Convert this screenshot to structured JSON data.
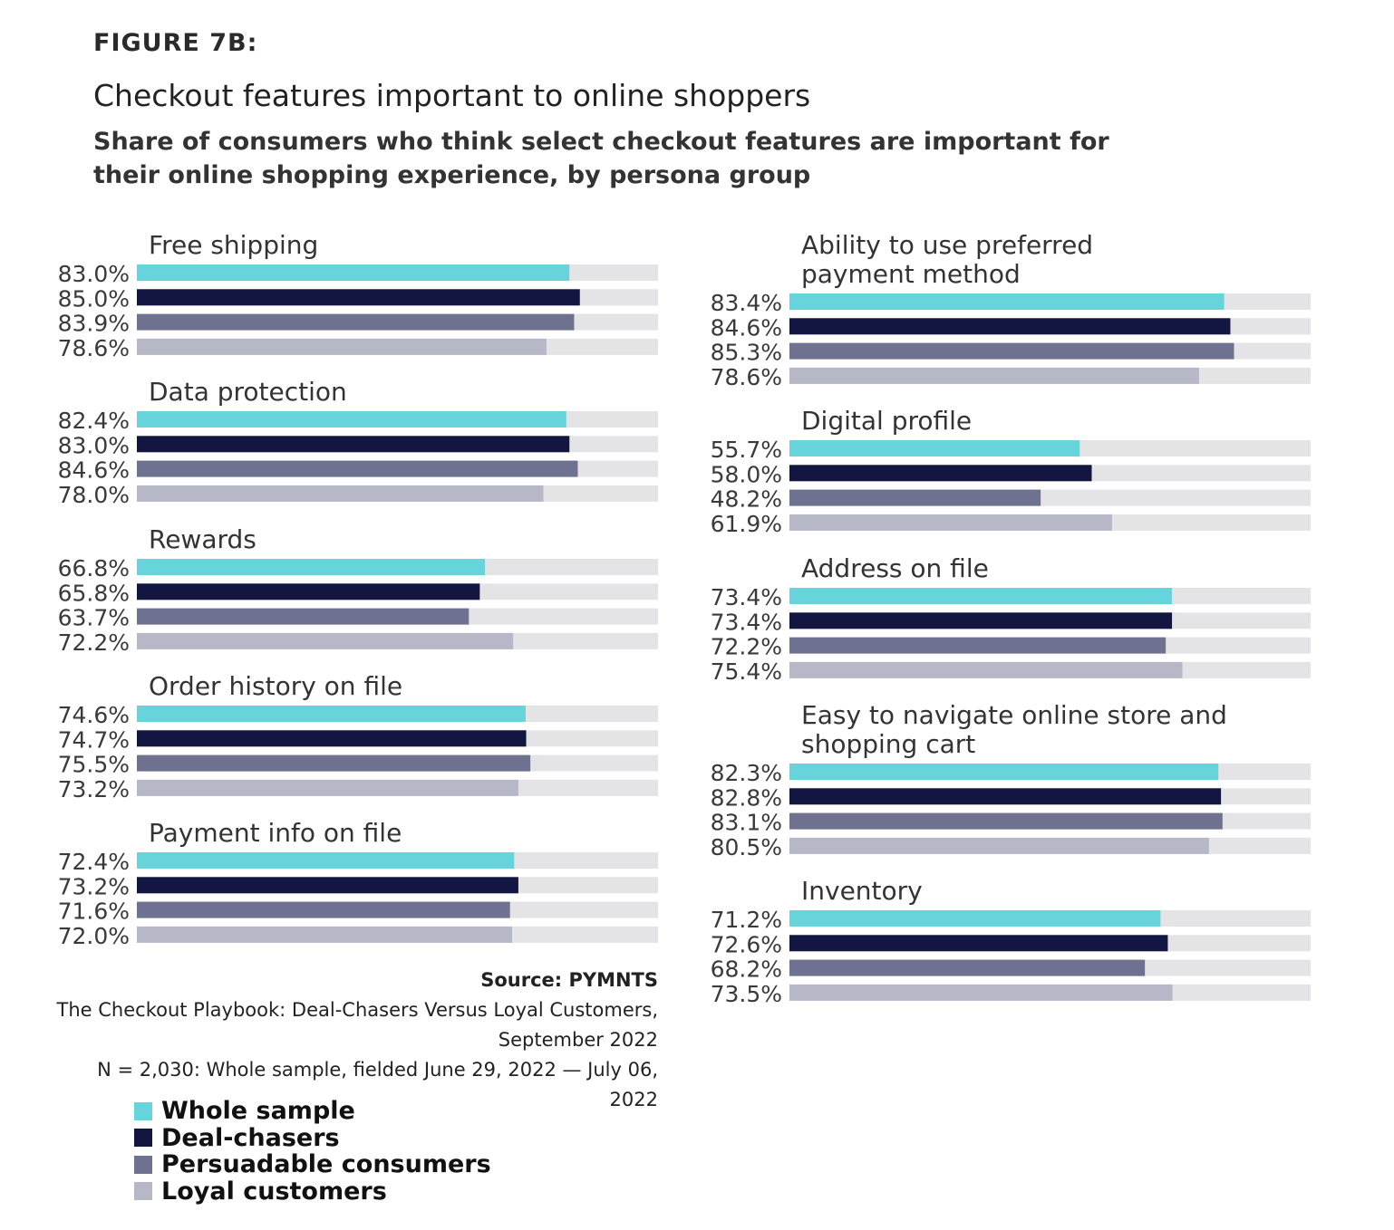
{
  "figure_label": "FIGURE 7B:",
  "title": "Checkout features important to online shoppers",
  "subtitle": "Share of consumers who think select checkout features are important for their online shopping experience, by persona group",
  "source": {
    "heading": "Source: PYMNTS",
    "line1": "The Checkout Playbook: Deal-Chasers Versus Loyal Customers, September 2022",
    "line2": "N = 2,030: Whole sample, fielded June 29, 2022 — July 06, 2022"
  },
  "colors": {
    "track": "#e4e4e6",
    "series": [
      "#67d4dc",
      "#131640",
      "#6e7290",
      "#b6b8c8"
    ]
  },
  "chart_data": {
    "type": "bar",
    "orientation": "horizontal",
    "xlim": [
      0,
      100
    ],
    "value_format": "percent",
    "series_names": [
      "Whole sample",
      "Deal-chasers",
      "Persuadable consumers",
      "Loyal customers"
    ],
    "groups": [
      {
        "category": "Free shipping",
        "values": [
          83.0,
          85.0,
          83.9,
          78.6
        ]
      },
      {
        "category": "Data protection",
        "values": [
          82.4,
          83.0,
          84.6,
          78.0
        ]
      },
      {
        "category": "Rewards",
        "values": [
          66.8,
          65.8,
          63.7,
          72.2
        ]
      },
      {
        "category": "Order history on file",
        "values": [
          74.6,
          74.7,
          75.5,
          73.2
        ]
      },
      {
        "category": "Payment info on file",
        "values": [
          72.4,
          73.2,
          71.6,
          72.0
        ]
      },
      {
        "category": "Ability to use preferred payment method",
        "values": [
          83.4,
          84.6,
          85.3,
          78.6
        ]
      },
      {
        "category": "Digital profile",
        "values": [
          55.7,
          58.0,
          48.2,
          61.9
        ]
      },
      {
        "category": "Address on file",
        "values": [
          73.4,
          73.4,
          72.2,
          75.4
        ]
      },
      {
        "category": "Easy to navigate online store and shopping cart",
        "values": [
          82.3,
          82.8,
          83.1,
          80.5
        ]
      },
      {
        "category": "Inventory",
        "values": [
          71.2,
          72.6,
          68.2,
          73.5
        ]
      }
    ]
  }
}
